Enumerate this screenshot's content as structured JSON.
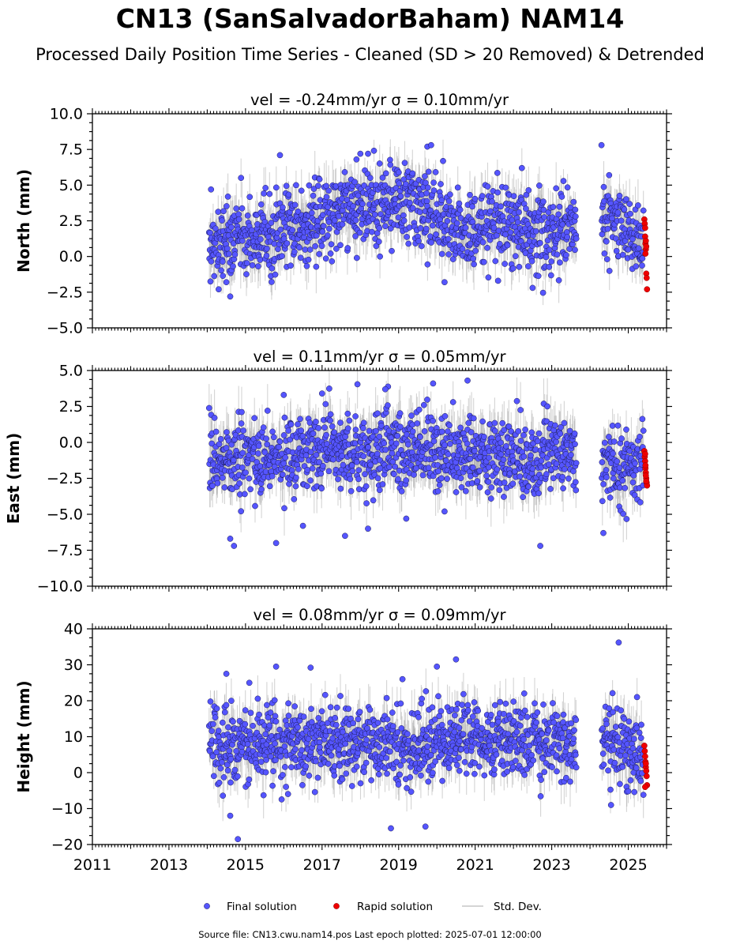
{
  "figure": {
    "title": "CN13 (SanSalvadorBaham) NAM14",
    "subtitle": "Processed Daily Position Time Series - Cleaned (SD > 20 Removed) & Detrended",
    "source_note": "Source file: CN13.cwu.nam14.pos  Last epoch plotted: 2025-07-01 12:00:00"
  },
  "legend": {
    "placement": "bottom-center",
    "final_label": "Final solution",
    "rapid_label": "Rapid solution",
    "std_label": "Std. Dev."
  },
  "colors": {
    "final_fill": "#5555ff",
    "final_edge": "#1a1a55",
    "rapid_fill": "#ee0000",
    "std_line": "#a0a0a0"
  },
  "chart_data": [
    {
      "type": "scatter",
      "panel": "north",
      "title": "vel = -0.24mm/yr   σ = 0.10mm/yr",
      "ylabel": "North (mm)",
      "xlim": [
        2011.0,
        2026.0
      ],
      "ylim": [
        -5.0,
        10.0
      ],
      "yticks": [
        -5.0,
        -2.5,
        0.0,
        2.5,
        5.0,
        7.5,
        10.0
      ],
      "ytick_labels": [
        "−5.0",
        "−2.5",
        "0.0",
        "2.5",
        "5.0",
        "7.5",
        "10.0"
      ],
      "series": [
        {
          "name": "Final solution",
          "time_range": [
            "2014.05",
            "2025.40"
          ],
          "data_gaps": [
            [
              "2023.65",
              "2024.30"
            ]
          ],
          "trend_points": [
            [
              2014.1,
              0.8
            ],
            [
              2015.5,
              1.5
            ],
            [
              2016.5,
              2.2
            ],
            [
              2017.5,
              3.2
            ],
            [
              2018.5,
              3.7
            ],
            [
              2019.5,
              3.5
            ],
            [
              2020.0,
              3.3
            ],
            [
              2020.2,
              1.8
            ],
            [
              2021.5,
              2.0
            ],
            [
              2023.5,
              1.9
            ],
            [
              2024.4,
              2.6
            ],
            [
              2025.4,
              1.0
            ]
          ],
          "outliers": [
            [
              2014.1,
              4.7
            ],
            [
              2014.3,
              -2.3
            ],
            [
              2014.5,
              -1.8
            ],
            [
              2014.6,
              -2.8
            ],
            [
              2015.9,
              7.1
            ],
            [
              2017.9,
              6.8
            ],
            [
              2018.0,
              7.2
            ],
            [
              2018.2,
              7.2
            ],
            [
              2019.75,
              7.7
            ],
            [
              2019.85,
              7.8
            ],
            [
              2024.3,
              7.8
            ],
            [
              2024.5,
              5.7
            ],
            [
              2020.2,
              -1.8
            ],
            [
              2021.6,
              -1.7
            ],
            [
              2022.5,
              -2.2
            ]
          ]
        },
        {
          "name": "Rapid solution",
          "x": [
            "2025.42",
            "2025.43",
            "2025.44",
            "2025.45",
            "2025.46",
            "2025.47",
            "2025.48",
            "2025.49",
            "2025.44",
            "2025.46",
            "2025.45",
            "2025.47"
          ],
          "y": [
            2.6,
            2.3,
            1.4,
            0.9,
            0.5,
            -1.2,
            -1.5,
            -2.3,
            2.0,
            1.1,
            0.2,
            0.7
          ]
        }
      ]
    },
    {
      "type": "scatter",
      "panel": "east",
      "title": "vel = 0.11mm/yr   σ = 0.05mm/yr",
      "ylabel": "East (mm)",
      "xlim": [
        2011.0,
        2026.0
      ],
      "ylim": [
        -10.0,
        5.0
      ],
      "yticks": [
        -10.0,
        -7.5,
        -5.0,
        -2.5,
        0.0,
        2.5,
        5.0
      ],
      "ytick_labels": [
        "−10.0",
        "−7.5",
        "−5.0",
        "−2.5",
        "0.0",
        "2.5",
        "5.0"
      ],
      "series": [
        {
          "name": "Final solution",
          "time_range": [
            "2014.05",
            "2025.40"
          ],
          "data_gaps": [
            [
              "2023.65",
              "2024.30"
            ]
          ],
          "trend_points": [
            [
              2014.1,
              -1.3
            ],
            [
              2015.0,
              -1.2
            ],
            [
              2016.0,
              -1.0
            ],
            [
              2017.0,
              -0.7
            ],
            [
              2018.0,
              -0.8
            ],
            [
              2019.0,
              -0.5
            ],
            [
              2019.8,
              0.1
            ],
            [
              2020.5,
              -0.6
            ],
            [
              2022.0,
              -0.9
            ],
            [
              2023.6,
              -0.8
            ],
            [
              2024.4,
              -1.3
            ],
            [
              2025.4,
              -1.9
            ]
          ],
          "outliers": [
            [
              2014.6,
              -6.7
            ],
            [
              2014.7,
              -7.2
            ],
            [
              2015.8,
              -7.0
            ],
            [
              2016.5,
              -5.8
            ],
            [
              2017.6,
              -6.5
            ],
            [
              2018.2,
              -6.0
            ],
            [
              2022.7,
              -7.2
            ],
            [
              2024.35,
              -6.3
            ],
            [
              2019.9,
              4.1
            ],
            [
              2020.8,
              4.3
            ],
            [
              2018.65,
              3.7
            ],
            [
              2019.2,
              -5.3
            ],
            [
              2016.0,
              3.3
            ],
            [
              2017.0,
              3.4
            ],
            [
              2020.2,
              -4.8
            ]
          ]
        },
        {
          "name": "Rapid solution",
          "x": [
            "2025.42",
            "2025.43",
            "2025.44",
            "2025.45",
            "2025.46",
            "2025.47",
            "2025.48",
            "2025.49",
            "2025.44",
            "2025.46",
            "2025.45",
            "2025.47"
          ],
          "y": [
            -0.6,
            -1.0,
            -1.3,
            -1.8,
            -2.1,
            -2.5,
            -2.8,
            -3.0,
            -0.8,
            -2.3,
            -1.6,
            -2.7
          ]
        }
      ]
    },
    {
      "type": "scatter",
      "panel": "height",
      "title": "vel = 0.08mm/yr   σ = 0.09mm/yr",
      "ylabel": "Height (mm)",
      "xlabel": "",
      "xlim": [
        2011.0,
        2026.0
      ],
      "ylim": [
        -20,
        40
      ],
      "yticks": [
        -20,
        -10,
        0,
        10,
        20,
        30,
        40
      ],
      "ytick_labels": [
        "−20",
        "−10",
        "0",
        "10",
        "20",
        "30",
        "40"
      ],
      "xticks": [
        2011,
        2013,
        2015,
        2017,
        2019,
        2021,
        2023,
        2025
      ],
      "xtick_labels": [
        "2011",
        "2013",
        "2015",
        "2017",
        "2019",
        "2021",
        "2023",
        "2025"
      ],
      "series": [
        {
          "name": "Final solution",
          "time_range": [
            "2014.05",
            "2025.40"
          ],
          "data_gaps": [
            [
              "2023.65",
              "2024.30"
            ]
          ],
          "trend_points": [
            [
              2014.1,
              8.0
            ],
            [
              2015.5,
              8.5
            ],
            [
              2016.5,
              8.0
            ],
            [
              2017.5,
              8.0
            ],
            [
              2018.5,
              8.0
            ],
            [
              2019.5,
              7.5
            ],
            [
              2020.5,
              10.0
            ],
            [
              2022.0,
              9.0
            ],
            [
              2023.6,
              8.0
            ],
            [
              2024.4,
              8.0
            ],
            [
              2025.4,
              4.0
            ]
          ],
          "outliers": [
            [
              2014.8,
              -18.5
            ],
            [
              2018.8,
              -15.5
            ],
            [
              2019.7,
              -15.0
            ],
            [
              2014.6,
              -12.0
            ],
            [
              2015.8,
              29.5
            ],
            [
              2016.7,
              29.2
            ],
            [
              2020.0,
              29.5
            ],
            [
              2020.5,
              31.5
            ],
            [
              2024.75,
              36.2
            ],
            [
              2019.1,
              26.0
            ],
            [
              2014.5,
              27.5
            ],
            [
              2015.1,
              25.0
            ],
            [
              2024.55,
              -9.0
            ]
          ]
        },
        {
          "name": "Rapid solution",
          "x": [
            "2025.42",
            "2025.43",
            "2025.44",
            "2025.45",
            "2025.46",
            "2025.47",
            "2025.48",
            "2025.49",
            "2025.44",
            "2025.46"
          ],
          "y": [
            7.5,
            6.0,
            4.5,
            3.0,
            1.5,
            0.5,
            -1.0,
            -3.5,
            -4.0,
            2.5
          ]
        }
      ]
    }
  ]
}
